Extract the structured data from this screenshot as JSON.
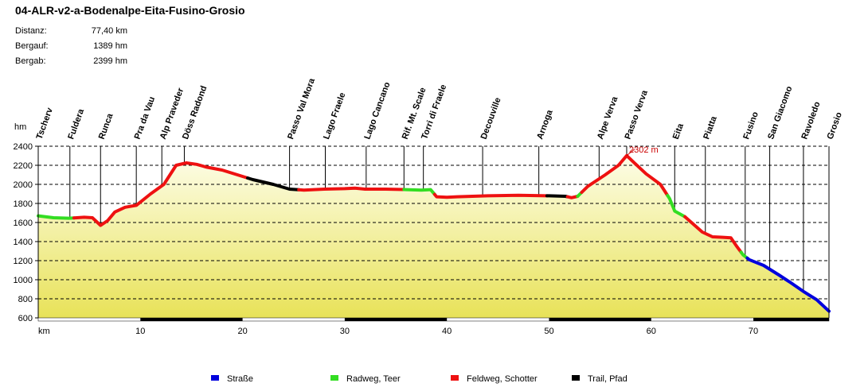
{
  "chart_data": {
    "type": "area",
    "title": "04-ALR-v2-a-Bodenalpe-Eita-Fusino-Grosio",
    "stats": [
      {
        "label": "Distanz:",
        "value": "77,40 km"
      },
      {
        "label": "Bergauf:",
        "value": "1389 hm"
      },
      {
        "label": "Bergab:",
        "value": "2399 hm"
      }
    ],
    "ylabel": "hm",
    "xlabel": "km",
    "xlim": [
      0,
      77.4
    ],
    "ylim": [
      600,
      2400
    ],
    "yticks": [
      600,
      800,
      1000,
      1200,
      1400,
      1600,
      1800,
      2000,
      2200,
      2400
    ],
    "xticks": [
      10,
      20,
      30,
      40,
      50,
      60,
      70
    ],
    "profile": [
      [
        0,
        1670
      ],
      [
        1.5,
        1650
      ],
      [
        3,
        1645
      ],
      [
        4.5,
        1655
      ],
      [
        5.3,
        1650
      ],
      [
        6.1,
        1570
      ],
      [
        6.8,
        1620
      ],
      [
        7.5,
        1710
      ],
      [
        8.5,
        1760
      ],
      [
        9.6,
        1780
      ],
      [
        11,
        1900
      ],
      [
        12.3,
        2000
      ],
      [
        13.5,
        2200
      ],
      [
        14.5,
        2225
      ],
      [
        15.5,
        2210
      ],
      [
        16.5,
        2180
      ],
      [
        18,
        2150
      ],
      [
        19.5,
        2100
      ],
      [
        21,
        2050
      ],
      [
        23,
        2000
      ],
      [
        24.6,
        1950
      ],
      [
        26,
        1940
      ],
      [
        28,
        1950
      ],
      [
        30,
        1955
      ],
      [
        31,
        1960
      ],
      [
        32,
        1950
      ],
      [
        34,
        1950
      ],
      [
        36,
        1945
      ],
      [
        37.5,
        1940
      ],
      [
        38.4,
        1945
      ],
      [
        39,
        1870
      ],
      [
        40,
        1865
      ],
      [
        41,
        1870
      ],
      [
        44,
        1880
      ],
      [
        47,
        1885
      ],
      [
        50,
        1880
      ],
      [
        51.6,
        1875
      ],
      [
        52.2,
        1860
      ],
      [
        52.8,
        1875
      ],
      [
        53.8,
        1980
      ],
      [
        55.5,
        2100
      ],
      [
        56.8,
        2200
      ],
      [
        57.6,
        2302
      ],
      [
        58.3,
        2230
      ],
      [
        59.5,
        2110
      ],
      [
        60.9,
        2000
      ],
      [
        61.8,
        1850
      ],
      [
        62.3,
        1720
      ],
      [
        63.3,
        1660
      ],
      [
        65,
        1500
      ],
      [
        66,
        1450
      ],
      [
        67,
        1445
      ],
      [
        67.8,
        1440
      ],
      [
        68.3,
        1360
      ],
      [
        69,
        1260
      ],
      [
        69.6,
        1210
      ],
      [
        71,
        1150
      ],
      [
        72.5,
        1050
      ],
      [
        73.5,
        980
      ],
      [
        75,
        870
      ],
      [
        76.2,
        790
      ],
      [
        77.4,
        670
      ]
    ],
    "surface_segments": [
      {
        "from": 0,
        "to": 3.5,
        "type": "Radweg, Teer"
      },
      {
        "from": 3.5,
        "to": 20.5,
        "type": "Feldweg, Schotter"
      },
      {
        "from": 20.5,
        "to": 25.5,
        "type": "Trail, Pfad"
      },
      {
        "from": 25.5,
        "to": 35.8,
        "type": "Feldweg, Schotter"
      },
      {
        "from": 35.8,
        "to": 38.8,
        "type": "Radweg, Teer"
      },
      {
        "from": 38.8,
        "to": 49.8,
        "type": "Feldweg, Schotter"
      },
      {
        "from": 49.8,
        "to": 51.8,
        "type": "Trail, Pfad"
      },
      {
        "from": 51.8,
        "to": 52.8,
        "type": "Feldweg, Schotter"
      },
      {
        "from": 52.8,
        "to": 53.2,
        "type": "Radweg, Teer"
      },
      {
        "from": 53.2,
        "to": 61.6,
        "type": "Feldweg, Schotter"
      },
      {
        "from": 61.6,
        "to": 63.3,
        "type": "Radweg, Teer"
      },
      {
        "from": 63.3,
        "to": 68.8,
        "type": "Feldweg, Schotter"
      },
      {
        "from": 68.8,
        "to": 69.4,
        "type": "Radweg, Teer"
      },
      {
        "from": 69.4,
        "to": 77.4,
        "type": "Straße"
      }
    ],
    "waypoints": [
      {
        "name": "Tscherv",
        "km": 0
      },
      {
        "name": "Fuldera",
        "km": 3.1
      },
      {
        "name": "Runca",
        "km": 6.1
      },
      {
        "name": "Pra da Vau",
        "km": 9.6
      },
      {
        "name": "Alp Praveder",
        "km": 12.1
      },
      {
        "name": "Döss Radond",
        "km": 14.3
      },
      {
        "name": "Passo Val Mora",
        "km": 24.6
      },
      {
        "name": "Lago Fraele",
        "km": 28.1
      },
      {
        "name": "Lago Cancano",
        "km": 32.1
      },
      {
        "name": "Rif. Mt. Scale",
        "km": 35.8
      },
      {
        "name": "Torri di Fraele",
        "km": 37.7
      },
      {
        "name": "Decouville",
        "km": 43.5
      },
      {
        "name": "Arnoga",
        "km": 49.0
      },
      {
        "name": "Alpe Verva",
        "km": 54.9
      },
      {
        "name": "Passo Verva",
        "km": 57.6
      },
      {
        "name": "Eita",
        "km": 62.3
      },
      {
        "name": "Piatta",
        "km": 65.3
      },
      {
        "name": "Fusino",
        "km": 69.2
      },
      {
        "name": "San Giacomo",
        "km": 71.6
      },
      {
        "name": "Ravoledo",
        "km": 74.9
      },
      {
        "name": "Grosio",
        "km": 77.4
      }
    ],
    "peak_label": "2302 m",
    "peak_km": 57.6,
    "legend": [
      {
        "label": "Straße",
        "type": "Straße"
      },
      {
        "label": "Radweg, Teer",
        "type": "Radweg, Teer"
      },
      {
        "label": "Feldweg, Schotter",
        "type": "Feldweg, Schotter"
      },
      {
        "label": "Trail, Pfad",
        "type": "Trail, Pfad"
      }
    ],
    "colors": {
      "Straße": "#0000dd",
      "Radweg, Teer": "#33dd22",
      "Feldweg, Schotter": "#ee1111",
      "Trail, Pfad": "#000000",
      "fill_top": "#fdfde8",
      "fill_bottom": "#e8e258",
      "peak_label": "#cc0000"
    }
  }
}
